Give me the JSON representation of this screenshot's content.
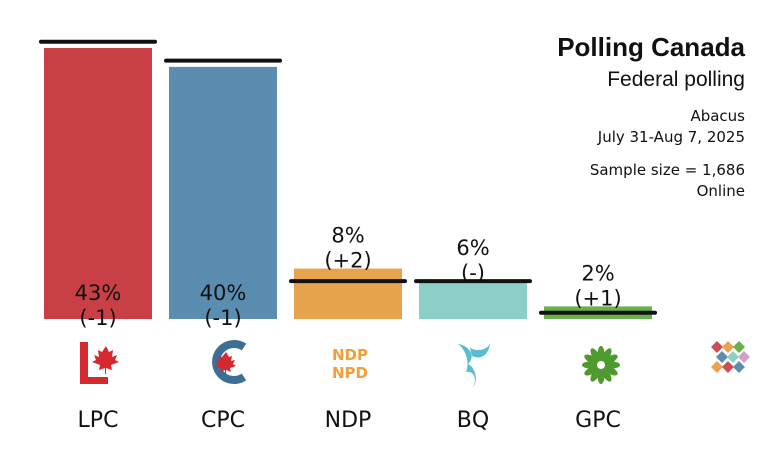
{
  "header": {
    "title": "Polling Canada",
    "subtitle": "Federal polling",
    "pollster": "Abacus",
    "dates": "July 31-Aug 7, 2025",
    "sample": "Sample size = 1,686",
    "method": "Online"
  },
  "chart_data": {
    "type": "bar",
    "title": "Polling Canada",
    "subtitle": "Federal polling",
    "categories": [
      "LPC",
      "CPC",
      "NDP",
      "BQ",
      "GPC"
    ],
    "values": [
      43,
      40,
      8,
      6,
      2
    ],
    "changes": [
      "(-1)",
      "(-1)",
      "(+2)",
      "(-)",
      "(+1)"
    ],
    "value_labels": [
      "43%",
      "40%",
      "8%",
      "6%",
      "2%"
    ],
    "previous_values": [
      44,
      41,
      6,
      6,
      1
    ],
    "colors": [
      "#c84045",
      "#5a8db0",
      "#e8a44c",
      "#8ccfc7",
      "#6ab04c"
    ],
    "ylim": [
      0,
      50
    ],
    "grid": false,
    "legend": "none"
  },
  "logos": [
    {
      "party": "LPC",
      "icon": "maple-leaf-l-logo",
      "color": "#d42a2f"
    },
    {
      "party": "CPC",
      "icon": "c-maple-leaf-logo",
      "color": "#3d6f94"
    },
    {
      "party": "NDP",
      "icon": "ndp-npd-wordmark-logo",
      "color": "#f29e3d",
      "text_top": "NDP",
      "text_bottom": "NPD"
    },
    {
      "party": "BQ",
      "icon": "bq-swoosh-logo",
      "color": "#59bcd0"
    },
    {
      "party": "GPC",
      "icon": "green-flower-logo",
      "color": "#4e9a2e"
    },
    {
      "party": "",
      "icon": "polling-canada-cube-logo",
      "color": "#c94f52"
    }
  ]
}
